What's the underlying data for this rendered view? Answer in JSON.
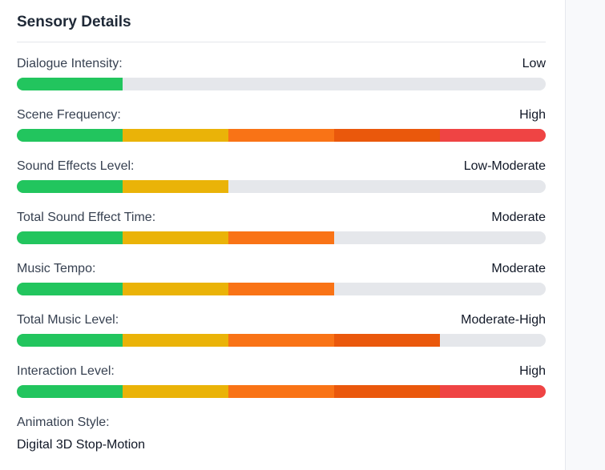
{
  "title": "Sensory Details",
  "segment_colors": [
    "#22c55e",
    "#eab308",
    "#f97316",
    "#ea580c",
    "#ef4444"
  ],
  "track_color": "#e5e7eb",
  "metrics": [
    {
      "label": "Dialogue Intensity:",
      "value": "Low",
      "level": 1,
      "max_level": 5
    },
    {
      "label": "Scene Frequency:",
      "value": "High",
      "level": 5,
      "max_level": 5
    },
    {
      "label": "Sound Effects Level:",
      "value": "Low-Moderate",
      "level": 2,
      "max_level": 5
    },
    {
      "label": "Total Sound Effect Time:",
      "value": "Moderate",
      "level": 3,
      "max_level": 5
    },
    {
      "label": "Music Tempo:",
      "value": "Moderate",
      "level": 3,
      "max_level": 5
    },
    {
      "label": "Total Music Level:",
      "value": "Moderate-High",
      "level": 4,
      "max_level": 5
    },
    {
      "label": "Interaction Level:",
      "value": "High",
      "level": 5,
      "max_level": 5
    }
  ],
  "animation_style": {
    "label": "Animation Style:",
    "value": "Digital 3D Stop-Motion"
  }
}
